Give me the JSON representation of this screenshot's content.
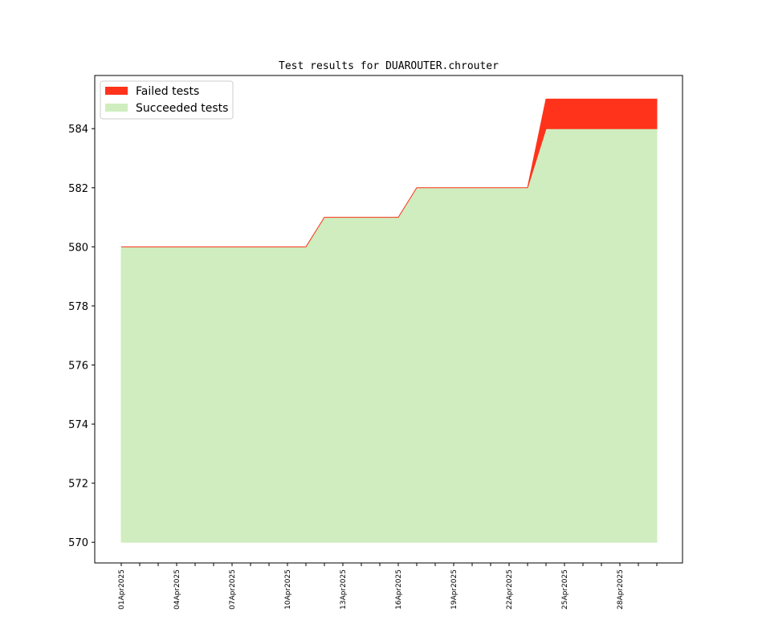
{
  "chart_data": {
    "type": "area",
    "title": "Test results for DUAROUTER.chrouter",
    "xlabel": "",
    "ylabel": "",
    "ylim": [
      569.3,
      585.8
    ],
    "yticks": [
      570,
      572,
      574,
      576,
      578,
      580,
      582,
      584
    ],
    "ytick_labels": [
      "570",
      "572",
      "574",
      "576",
      "578",
      "580",
      "582",
      "584"
    ],
    "x": [
      "01Apr2025",
      "02Apr2025",
      "03Apr2025",
      "04Apr2025",
      "05Apr2025",
      "06Apr2025",
      "07Apr2025",
      "08Apr2025",
      "09Apr2025",
      "10Apr2025",
      "11Apr2025",
      "12Apr2025",
      "13Apr2025",
      "14Apr2025",
      "15Apr2025",
      "16Apr2025",
      "17Apr2025",
      "18Apr2025",
      "19Apr2025",
      "20Apr2025",
      "21Apr2025",
      "22Apr2025",
      "23Apr2025",
      "24Apr2025",
      "25Apr2025",
      "26Apr2025",
      "27Apr2025",
      "28Apr2025",
      "29Apr2025",
      "30Apr2025"
    ],
    "xtick_labels": [
      "01Apr2025",
      "",
      "",
      "04Apr2025",
      "",
      "",
      "07Apr2025",
      "",
      "",
      "10Apr2025",
      "",
      "",
      "13Apr2025",
      "",
      "",
      "16Apr2025",
      "",
      "",
      "19Apr2025",
      "",
      "",
      "22Apr2025",
      "",
      "",
      "25Apr2025",
      "",
      "",
      "28Apr2025",
      "",
      ""
    ],
    "baseline": 570,
    "series": [
      {
        "name": "Succeeded tests",
        "color": "#cfedbe",
        "values": [
          580,
          580,
          580,
          580,
          580,
          580,
          580,
          580,
          580,
          580,
          580,
          581,
          581,
          581,
          581,
          581,
          582,
          582,
          582,
          582,
          582,
          582,
          582,
          584,
          584,
          584,
          584,
          584,
          584,
          584
        ]
      },
      {
        "name": "Failed tests",
        "color": "#ff331c",
        "values": [
          0,
          0,
          0,
          0,
          0,
          0,
          0,
          0,
          0,
          0,
          0,
          0,
          0,
          0,
          0,
          0,
          0,
          0,
          0,
          0,
          0,
          0,
          0,
          1,
          1,
          1,
          1,
          1,
          1,
          1
        ]
      }
    ],
    "legend": {
      "position": "top-left",
      "entries": [
        {
          "label": "Failed tests",
          "color": "#ff331c"
        },
        {
          "label": "Succeeded tests",
          "color": "#cfedbe"
        }
      ]
    },
    "grid": false
  }
}
